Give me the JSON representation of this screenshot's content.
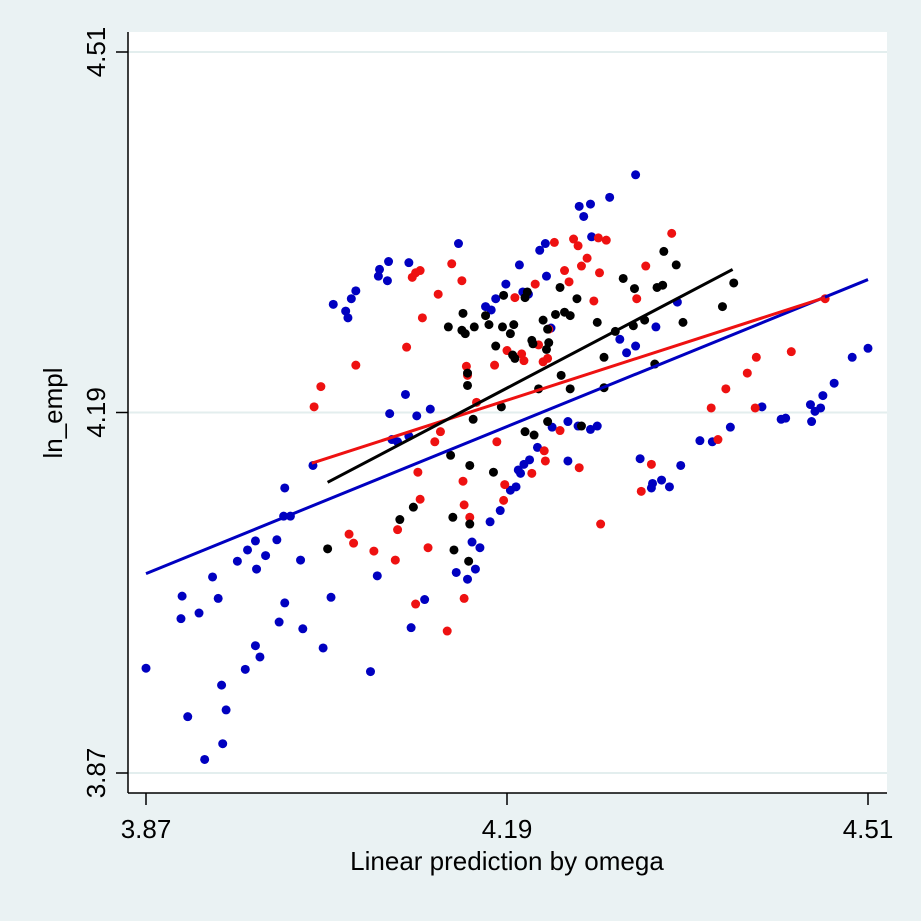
{
  "chart_data": {
    "type": "scatter",
    "title": "",
    "xlabel": "Linear prediction by omega",
    "ylabel": "ln_empl",
    "xlim": [
      3.87,
      4.51
    ],
    "ylim": [
      3.87,
      4.51
    ],
    "xticks": [
      "3.87",
      "4.19",
      "4.51"
    ],
    "yticks": [
      "3.87",
      "4.19",
      "4.51"
    ],
    "grid": "horizontal at y ticks",
    "legend": "none",
    "colors": {
      "blue": "#0000c0",
      "red": "#ee1111",
      "black": "#000000",
      "background": "#eaf2f3",
      "plot": "#ffffff",
      "grid": "#e3eeee"
    },
    "series": [
      {
        "color": "blue",
        "points": [
          [
            3.87,
            3.963
          ],
          [
            3.902,
            4.027
          ],
          [
            3.901,
            4.007
          ],
          [
            3.907,
            3.92
          ],
          [
            3.917,
            4.012
          ],
          [
            3.922,
            3.882
          ],
          [
            3.929,
            4.044
          ],
          [
            3.934,
            4.025
          ],
          [
            3.937,
            3.948
          ],
          [
            3.938,
            3.896
          ],
          [
            3.941,
            3.926
          ],
          [
            3.951,
            4.058
          ],
          [
            3.958,
            3.962
          ],
          [
            3.96,
            4.068
          ],
          [
            3.967,
            4.076
          ],
          [
            3.967,
            3.983
          ],
          [
            3.968,
            4.051
          ],
          [
            3.971,
            3.973
          ],
          [
            3.976,
            4.063
          ],
          [
            3.986,
            4.077
          ],
          [
            3.988,
            4.004
          ],
          [
            3.992,
            4.098
          ],
          [
            3.993,
            4.123
          ],
          [
            3.993,
            4.021
          ],
          [
            3.998,
            4.098
          ],
          [
            4.007,
            4.059
          ],
          [
            4.009,
            3.998
          ],
          [
            4.018,
            4.143
          ],
          [
            4.027,
            3.981
          ],
          [
            4.034,
            4.026
          ],
          [
            4.036,
            4.286
          ],
          [
            4.047,
            4.28
          ],
          [
            4.049,
            4.274
          ],
          [
            4.052,
            4.291
          ],
          [
            4.056,
            4.298
          ],
          [
            4.069,
            3.96
          ],
          [
            4.075,
            4.045
          ],
          [
            4.076,
            4.311
          ],
          [
            4.077,
            4.317
          ],
          [
            4.084,
            4.307
          ],
          [
            4.085,
            4.324
          ],
          [
            4.086,
            4.189
          ],
          [
            4.088,
            4.166
          ],
          [
            4.093,
            4.164
          ],
          [
            4.1,
            4.206
          ],
          [
            4.103,
            4.323
          ],
          [
            4.103,
            4.169
          ],
          [
            4.105,
            3.999
          ],
          [
            4.11,
            4.187
          ],
          [
            4.117,
            4.024
          ],
          [
            4.122,
            4.193
          ],
          [
            4.147,
            4.34
          ],
          [
            4.155,
            4.042
          ],
          [
            4.162,
            4.051
          ],
          [
            4.159,
            4.075
          ],
          [
            4.171,
            4.284
          ],
          [
            4.176,
            4.281
          ],
          [
            4.18,
            4.291
          ],
          [
            4.189,
            4.304
          ],
          [
            4.201,
            4.321
          ],
          [
            4.204,
            4.297
          ],
          [
            4.209,
            4.295
          ],
          [
            4.219,
            4.334
          ],
          [
            4.224,
            4.34
          ],
          [
            4.225,
            4.311
          ],
          [
            4.229,
            4.265
          ],
          [
            4.254,
            4.373
          ],
          [
            4.258,
            4.364
          ],
          [
            4.264,
            4.375
          ],
          [
            4.265,
            4.346
          ],
          [
            4.281,
            4.381
          ],
          [
            4.304,
            4.401
          ],
          [
            4.304,
            4.249
          ],
          [
            4.296,
            4.243
          ],
          [
            4.29,
            4.255
          ],
          [
            4.322,
            4.266
          ],
          [
            4.341,
            4.288
          ],
          [
            4.2,
            4.139
          ],
          [
            4.202,
            4.136
          ],
          [
            4.205,
            4.144
          ],
          [
            4.21,
            4.148
          ],
          [
            4.198,
            4.124
          ],
          [
            4.217,
            4.159
          ],
          [
            4.23,
            4.177
          ],
          [
            4.244,
            4.182
          ],
          [
            4.253,
            4.178
          ],
          [
            4.264,
            4.175
          ],
          [
            4.27,
            4.178
          ],
          [
            4.184,
            4.103
          ],
          [
            4.193,
            4.121
          ],
          [
            4.166,
            4.07
          ],
          [
            4.175,
            4.093
          ],
          [
            4.145,
            4.048
          ],
          [
            4.244,
            4.147
          ],
          [
            4.318,
            4.123
          ],
          [
            4.327,
            4.13
          ],
          [
            4.334,
            4.124
          ],
          [
            4.344,
            4.143
          ],
          [
            4.361,
            4.165
          ],
          [
            4.372,
            4.164
          ],
          [
            4.388,
            4.177
          ],
          [
            4.433,
            4.184
          ],
          [
            4.437,
            4.185
          ],
          [
            4.459,
            4.197
          ],
          [
            4.46,
            4.182
          ],
          [
            4.463,
            4.191
          ],
          [
            4.468,
            4.194
          ],
          [
            4.47,
            4.205
          ],
          [
            4.48,
            4.216
          ],
          [
            4.496,
            4.239
          ],
          [
            4.51,
            4.247
          ],
          [
            4.416,
            4.195
          ],
          [
            4.308,
            4.149
          ],
          [
            4.319,
            4.127
          ]
        ],
        "fit_line": [
          [
            3.87,
            4.047
          ],
          [
            4.51,
            4.308
          ]
        ]
      },
      {
        "color": "red",
        "points": [
          [
            4.019,
            4.195
          ],
          [
            4.025,
            4.213
          ],
          [
            4.056,
            4.232
          ],
          [
            4.05,
            4.082
          ],
          [
            4.054,
            4.074
          ],
          [
            4.072,
            4.067
          ],
          [
            4.091,
            4.059
          ],
          [
            4.093,
            4.086
          ],
          [
            4.101,
            4.248
          ],
          [
            4.106,
            4.31
          ],
          [
            4.109,
            4.314
          ],
          [
            4.113,
            4.316
          ],
          [
            4.115,
            4.274
          ],
          [
            4.111,
            4.137
          ],
          [
            4.109,
            4.02
          ],
          [
            4.113,
            4.113
          ],
          [
            4.12,
            4.07
          ],
          [
            4.129,
            4.295
          ],
          [
            4.126,
            4.164
          ],
          [
            4.131,
            4.173
          ],
          [
            4.137,
            3.996
          ],
          [
            4.141,
            4.322
          ],
          [
            4.15,
            4.307
          ],
          [
            4.152,
            4.108
          ],
          [
            4.152,
            4.025
          ],
          [
            4.155,
            4.223
          ],
          [
            4.154,
            4.231
          ],
          [
            4.151,
            4.129
          ],
          [
            4.157,
            4.097
          ],
          [
            4.163,
            4.199
          ],
          [
            4.179,
            4.232
          ],
          [
            4.188,
            4.126
          ],
          [
            4.187,
            4.112
          ],
          [
            4.19,
            4.245
          ],
          [
            4.197,
            4.292
          ],
          [
            4.203,
            4.242
          ],
          [
            4.205,
            4.236
          ],
          [
            4.215,
            4.304
          ],
          [
            4.218,
            4.25
          ],
          [
            4.222,
            4.235
          ],
          [
            4.226,
            4.238
          ],
          [
            4.227,
            4.264
          ],
          [
            4.232,
            4.341
          ],
          [
            4.237,
            4.174
          ],
          [
            4.241,
            4.316
          ],
          [
            4.245,
            4.306
          ],
          [
            4.249,
            4.344
          ],
          [
            4.253,
            4.338
          ],
          [
            4.256,
            4.32
          ],
          [
            4.261,
            4.327
          ],
          [
            4.254,
            4.141
          ],
          [
            4.267,
            4.289
          ],
          [
            4.271,
            4.345
          ],
          [
            4.272,
            4.314
          ],
          [
            4.273,
            4.091
          ],
          [
            4.278,
            4.343
          ],
          [
            4.305,
            4.291
          ],
          [
            4.309,
            4.12
          ],
          [
            4.318,
            4.144
          ],
          [
            4.313,
            4.32
          ],
          [
            4.336,
            4.349
          ],
          [
            4.371,
            4.194
          ],
          [
            4.377,
            4.166
          ],
          [
            4.384,
            4.211
          ],
          [
            4.403,
            4.225
          ],
          [
            4.41,
            4.194
          ],
          [
            4.411,
            4.239
          ],
          [
            4.442,
            4.244
          ],
          [
            4.472,
            4.291
          ],
          [
            4.223,
            4.156
          ],
          [
            4.212,
            4.136
          ],
          [
            4.224,
            4.147
          ],
          [
            4.181,
            4.164
          ]
        ],
        "fit_line": [
          [
            4.017,
            4.145
          ],
          [
            4.472,
            4.292
          ]
        ]
      },
      {
        "color": "black",
        "points": [
          [
            4.031,
            4.069
          ],
          [
            4.095,
            4.095
          ],
          [
            4.107,
            4.106
          ],
          [
            4.138,
            4.266
          ],
          [
            4.14,
            4.152
          ],
          [
            4.142,
            4.097
          ],
          [
            4.143,
            4.068
          ],
          [
            4.15,
            4.263
          ],
          [
            4.151,
            4.278
          ],
          [
            4.153,
            4.26
          ],
          [
            4.155,
            4.225
          ],
          [
            4.155,
            4.214
          ],
          [
            4.157,
            4.091
          ],
          [
            4.157,
            4.143
          ],
          [
            4.156,
            4.058
          ],
          [
            4.16,
            4.184
          ],
          [
            4.161,
            4.266
          ],
          [
            4.171,
            4.276
          ],
          [
            4.174,
            4.268
          ],
          [
            4.18,
            4.249
          ],
          [
            4.178,
            4.137
          ],
          [
            4.187,
            4.294
          ],
          [
            4.193,
            4.26
          ],
          [
            4.186,
            4.266
          ],
          [
            4.196,
            4.268
          ],
          [
            4.195,
            4.241
          ],
          [
            4.197,
            4.238
          ],
          [
            4.206,
            4.292
          ],
          [
            4.208,
            4.297
          ],
          [
            4.212,
            4.254
          ],
          [
            4.218,
            4.211
          ],
          [
            4.213,
            4.251
          ],
          [
            4.222,
            4.272
          ],
          [
            4.226,
            4.264
          ],
          [
            4.227,
            4.252
          ],
          [
            4.225,
            4.246
          ],
          [
            4.233,
            4.277
          ],
          [
            4.237,
            4.301
          ],
          [
            4.241,
            4.279
          ],
          [
            4.246,
            4.276
          ],
          [
            4.252,
            4.291
          ],
          [
            4.256,
            4.178
          ],
          [
            4.27,
            4.27
          ],
          [
            4.276,
            4.239
          ],
          [
            4.276,
            4.212
          ],
          [
            4.286,
            4.262
          ],
          [
            4.293,
            4.309
          ],
          [
            4.303,
            4.3
          ],
          [
            4.312,
            4.272
          ],
          [
            4.302,
            4.267
          ],
          [
            4.321,
            4.233
          ],
          [
            4.323,
            4.301
          ],
          [
            4.328,
            4.303
          ],
          [
            4.329,
            4.333
          ],
          [
            4.34,
            4.321
          ],
          [
            4.346,
            4.27
          ],
          [
            4.381,
            4.284
          ],
          [
            4.391,
            4.305
          ],
          [
            4.185,
            4.195
          ],
          [
            4.206,
            4.173
          ],
          [
            4.214,
            4.17
          ],
          [
            4.226,
            4.182
          ],
          [
            4.246,
            4.211
          ],
          [
            4.238,
            4.223
          ]
        ],
        "fit_line": [
          [
            4.031,
            4.128
          ],
          [
            4.39,
            4.317
          ]
        ]
      }
    ]
  }
}
